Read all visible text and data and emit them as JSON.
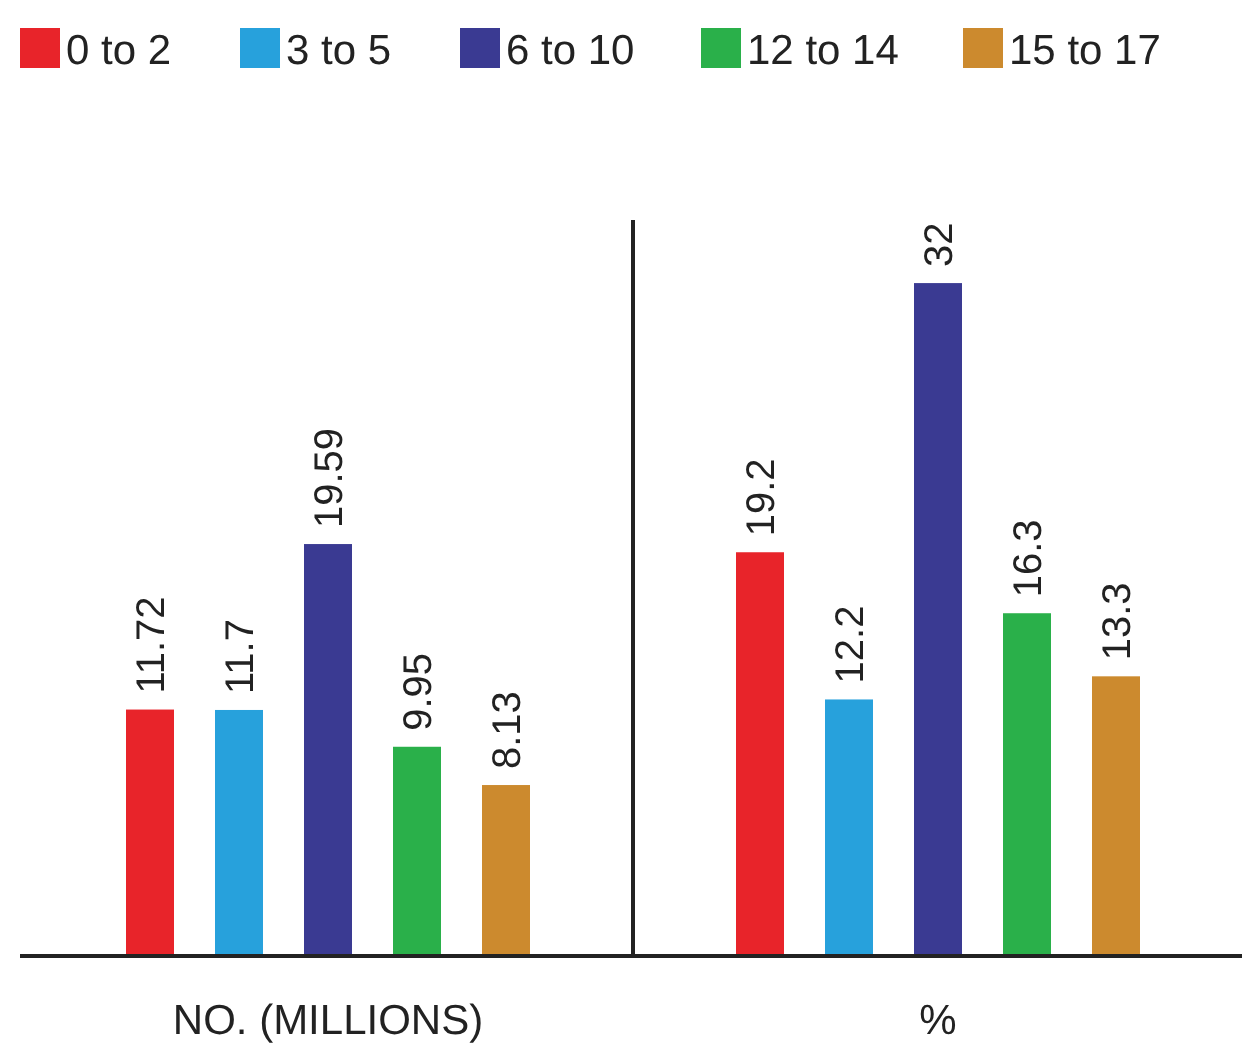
{
  "chart_data": {
    "type": "bar",
    "categories": [
      "NO. (MILLIONS)",
      "%"
    ],
    "series": [
      {
        "name": "0 to 2",
        "color": "#e8242a",
        "values": [
          11.72,
          19.2
        ]
      },
      {
        "name": "3 to 5",
        "color": "#27a1dc",
        "values": [
          11.7,
          12.2
        ]
      },
      {
        "name": "6 to 10",
        "color": "#3a3a92",
        "values": [
          19.59,
          32
        ]
      },
      {
        "name": "12 to 14",
        "color": "#2ab04a",
        "values": [
          9.95,
          16.3
        ]
      },
      {
        "name": "15 to 17",
        "color": "#cc8a2e",
        "values": [
          8.13,
          13.3
        ]
      }
    ],
    "ylim": [
      0,
      35
    ],
    "tick_labels": "x",
    "data_labels": true,
    "legend": "top left"
  }
}
